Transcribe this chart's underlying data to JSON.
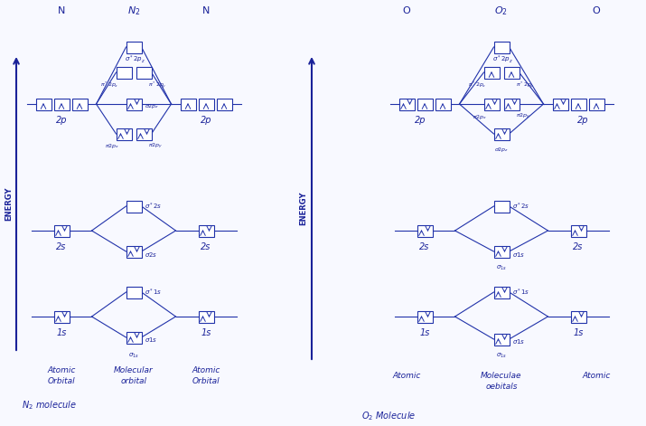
{
  "bg_color": "#f8f9ff",
  "line_color": "#2233aa",
  "text_color": "#1a2299",
  "title_n2": "N$_2$",
  "title_o2": "O$_2$",
  "label_n_left": "N",
  "label_n_right": "N",
  "label_o_left": "O",
  "label_o_right": "O",
  "energy_label": "ENERGY"
}
